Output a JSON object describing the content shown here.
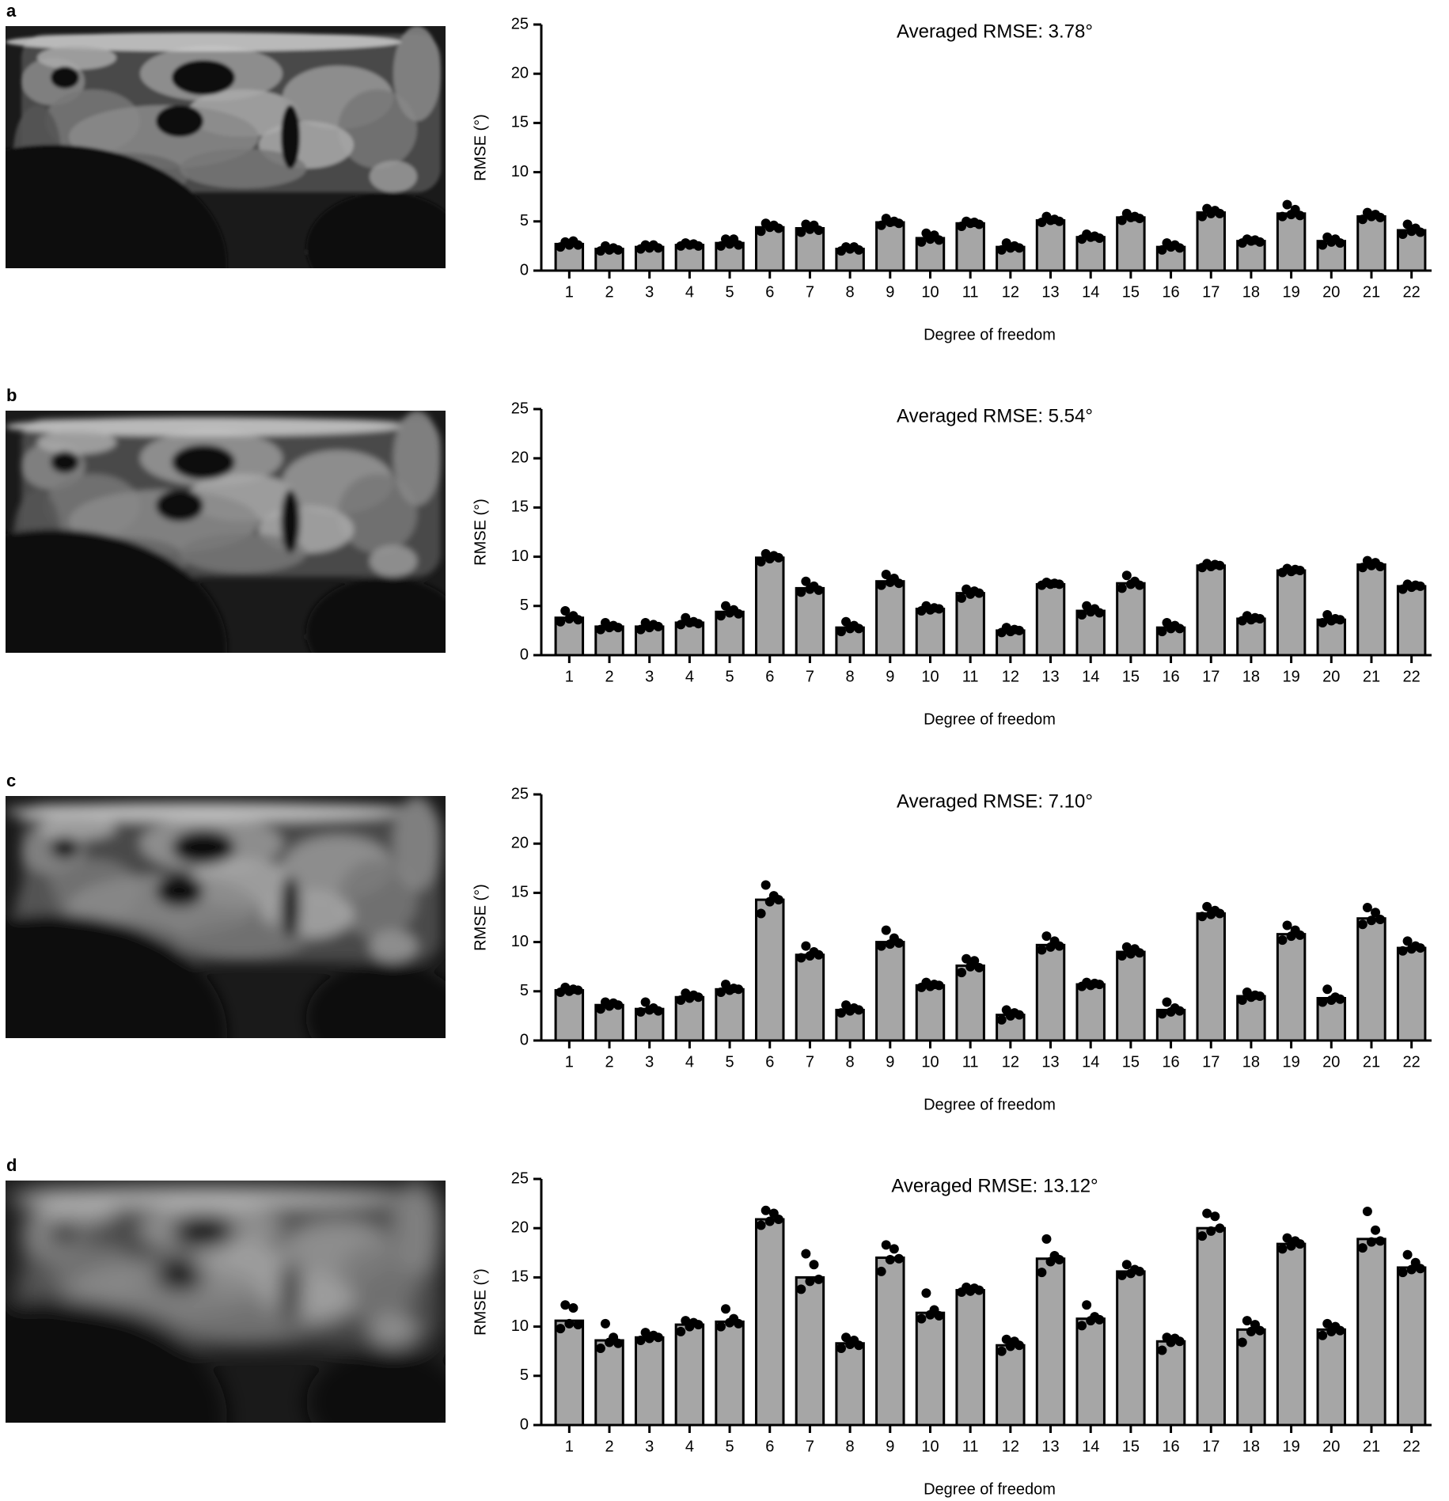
{
  "chart_data": [
    {
      "type": "bar",
      "panel": "a",
      "title": "Averaged RMSE: 3.78°",
      "xlabel": "Degree of freedom",
      "ylabel": "RMSE (°)",
      "categories": [
        "1",
        "2",
        "3",
        "4",
        "5",
        "6",
        "7",
        "8",
        "9",
        "10",
        "11",
        "12",
        "13",
        "14",
        "15",
        "16",
        "17",
        "18",
        "19",
        "20",
        "21",
        "22"
      ],
      "values": [
        2.7,
        2.2,
        2.4,
        2.6,
        2.8,
        4.4,
        4.3,
        2.2,
        4.9,
        3.3,
        4.8,
        2.4,
        5.1,
        3.4,
        5.4,
        2.4,
        5.9,
        3.0,
        5.8,
        3.0,
        5.5,
        4.1
      ],
      "points": [
        [
          2.4,
          2.9,
          2.6,
          3.0,
          2.6
        ],
        [
          2.0,
          2.5,
          2.1,
          2.3,
          2.1
        ],
        [
          2.2,
          2.6,
          2.3,
          2.6,
          2.3
        ],
        [
          2.5,
          2.8,
          2.6,
          2.7,
          2.5
        ],
        [
          2.5,
          3.2,
          2.7,
          3.2,
          2.6
        ],
        [
          4.0,
          4.8,
          4.4,
          4.6,
          4.3
        ],
        [
          3.9,
          4.7,
          4.2,
          4.6,
          4.1
        ],
        [
          2.0,
          2.4,
          2.2,
          2.4,
          2.1
        ],
        [
          4.6,
          5.3,
          4.9,
          5.0,
          4.8
        ],
        [
          2.9,
          3.8,
          3.2,
          3.6,
          3.1
        ],
        [
          4.5,
          5.0,
          4.8,
          4.9,
          4.7
        ],
        [
          2.1,
          2.8,
          2.3,
          2.5,
          2.3
        ],
        [
          4.9,
          5.5,
          5.1,
          5.2,
          5.0
        ],
        [
          3.2,
          3.7,
          3.4,
          3.5,
          3.3
        ],
        [
          5.1,
          5.8,
          5.4,
          5.5,
          5.3
        ],
        [
          2.1,
          2.8,
          2.4,
          2.6,
          2.3
        ],
        [
          5.5,
          6.3,
          5.8,
          6.1,
          5.8
        ],
        [
          2.8,
          3.2,
          3.0,
          3.1,
          2.9
        ],
        [
          5.5,
          6.7,
          5.7,
          6.2,
          5.6
        ],
        [
          2.6,
          3.4,
          2.9,
          3.2,
          2.8
        ],
        [
          5.2,
          5.9,
          5.5,
          5.7,
          5.4
        ],
        [
          3.7,
          4.7,
          4.0,
          4.3,
          3.9
        ]
      ],
      "ylim": [
        0,
        25
      ],
      "yticks": [
        0,
        5,
        10,
        15,
        20,
        25
      ],
      "color": "#a6a6a6",
      "point_color": "#000000"
    },
    {
      "type": "bar",
      "panel": "b",
      "title": "Averaged RMSE: 5.54°",
      "xlabel": "Degree of freedom",
      "ylabel": "RMSE (°)",
      "categories": [
        "1",
        "2",
        "3",
        "4",
        "5",
        "6",
        "7",
        "8",
        "9",
        "10",
        "11",
        "12",
        "13",
        "14",
        "15",
        "16",
        "17",
        "18",
        "19",
        "20",
        "21",
        "22"
      ],
      "values": [
        3.8,
        2.9,
        2.9,
        3.3,
        4.4,
        9.9,
        6.8,
        2.8,
        7.5,
        4.7,
        6.3,
        2.5,
        7.2,
        4.5,
        7.3,
        2.8,
        9.1,
        3.7,
        8.6,
        3.6,
        9.2,
        7.0
      ],
      "points": [
        [
          3.4,
          4.5,
          3.7,
          4.0,
          3.6
        ],
        [
          2.6,
          3.3,
          2.8,
          3.0,
          2.8
        ],
        [
          2.6,
          3.3,
          2.8,
          3.1,
          2.9
        ],
        [
          3.1,
          3.8,
          3.3,
          3.4,
          3.2
        ],
        [
          4.0,
          5.0,
          4.3,
          4.6,
          4.2
        ],
        [
          9.5,
          10.3,
          9.8,
          10.1,
          9.9
        ],
        [
          6.4,
          7.5,
          6.7,
          7.0,
          6.6
        ],
        [
          2.4,
          3.4,
          2.7,
          3.0,
          2.7
        ],
        [
          7.1,
          8.2,
          7.4,
          7.8,
          7.3
        ],
        [
          4.5,
          5.0,
          4.6,
          4.8,
          4.7
        ],
        [
          5.8,
          6.7,
          6.2,
          6.5,
          6.3
        ],
        [
          2.3,
          2.8,
          2.4,
          2.6,
          2.5
        ],
        [
          7.1,
          7.4,
          7.2,
          7.3,
          7.2
        ],
        [
          4.1,
          5.0,
          4.4,
          4.7,
          4.3
        ],
        [
          6.8,
          8.1,
          7.2,
          7.5,
          7.1
        ],
        [
          2.4,
          3.3,
          2.7,
          3.0,
          2.7
        ],
        [
          8.9,
          9.3,
          9.0,
          9.2,
          9.1
        ],
        [
          3.5,
          4.0,
          3.6,
          3.8,
          3.7
        ],
        [
          8.4,
          8.8,
          8.5,
          8.7,
          8.6
        ],
        [
          3.3,
          4.1,
          3.5,
          3.7,
          3.6
        ],
        [
          8.9,
          9.6,
          9.1,
          9.4,
          9.0
        ],
        [
          6.7,
          7.2,
          6.9,
          7.1,
          7.0
        ]
      ],
      "ylim": [
        0,
        25
      ],
      "yticks": [
        0,
        5,
        10,
        15,
        20,
        25
      ],
      "color": "#a6a6a6",
      "point_color": "#000000"
    },
    {
      "type": "bar",
      "panel": "c",
      "title": "Averaged RMSE: 7.10°",
      "xlabel": "Degree of freedom",
      "ylabel": "RMSE (°)",
      "categories": [
        "1",
        "2",
        "3",
        "4",
        "5",
        "6",
        "7",
        "8",
        "9",
        "10",
        "11",
        "12",
        "13",
        "14",
        "15",
        "16",
        "17",
        "18",
        "19",
        "20",
        "21",
        "22"
      ],
      "values": [
        5.1,
        3.6,
        3.2,
        4.4,
        5.2,
        14.3,
        8.7,
        3.1,
        10.0,
        5.6,
        7.6,
        2.6,
        9.7,
        5.7,
        9.0,
        3.1,
        12.9,
        4.5,
        10.8,
        4.3,
        12.4,
        9.4
      ],
      "points": [
        [
          4.9,
          5.4,
          5.0,
          5.2,
          5.1
        ],
        [
          3.2,
          3.9,
          3.5,
          3.8,
          3.6
        ],
        [
          2.9,
          3.9,
          3.1,
          3.3,
          3.0
        ],
        [
          4.1,
          4.8,
          4.3,
          4.6,
          4.4
        ],
        [
          4.9,
          5.7,
          5.1,
          5.3,
          5.2
        ],
        [
          12.9,
          15.8,
          14.1,
          14.7,
          14.3
        ],
        [
          8.4,
          9.6,
          8.6,
          9.0,
          8.7
        ],
        [
          2.8,
          3.6,
          3.0,
          3.3,
          3.1
        ],
        [
          9.6,
          11.2,
          9.8,
          10.4,
          9.9
        ],
        [
          5.4,
          5.9,
          5.5,
          5.7,
          5.6
        ],
        [
          6.9,
          8.3,
          7.5,
          8.1,
          7.4
        ],
        [
          2.1,
          3.1,
          2.5,
          2.8,
          2.6
        ],
        [
          9.2,
          10.6,
          9.5,
          10.1,
          9.6
        ],
        [
          5.5,
          5.9,
          5.6,
          5.8,
          5.7
        ],
        [
          8.6,
          9.5,
          8.8,
          9.3,
          8.9
        ],
        [
          2.7,
          3.9,
          2.9,
          3.3,
          3.0
        ],
        [
          12.6,
          13.6,
          12.8,
          13.2,
          12.9
        ],
        [
          4.1,
          4.9,
          4.4,
          4.6,
          4.5
        ],
        [
          10.2,
          11.7,
          10.6,
          11.2,
          10.7
        ],
        [
          3.9,
          5.2,
          4.1,
          4.4,
          4.2
        ],
        [
          11.8,
          13.5,
          12.2,
          13.0,
          12.3
        ],
        [
          9.1,
          10.1,
          9.3,
          9.6,
          9.4
        ]
      ],
      "ylim": [
        0,
        25
      ],
      "yticks": [
        0,
        5,
        10,
        15,
        20,
        25
      ],
      "color": "#a6a6a6",
      "point_color": "#000000"
    },
    {
      "type": "bar",
      "panel": "d",
      "title": "Averaged RMSE: 13.12°",
      "xlabel": "Degree of freedom",
      "ylabel": "RMSE (°)",
      "categories": [
        "1",
        "2",
        "3",
        "4",
        "5",
        "6",
        "7",
        "8",
        "9",
        "10",
        "11",
        "12",
        "13",
        "14",
        "15",
        "16",
        "17",
        "18",
        "19",
        "20",
        "21",
        "22"
      ],
      "values": [
        10.6,
        8.6,
        8.9,
        10.2,
        10.5,
        20.9,
        15.0,
        8.3,
        17.0,
        11.4,
        13.7,
        8.1,
        16.9,
        10.8,
        15.6,
        8.5,
        20.0,
        9.7,
        18.4,
        9.7,
        18.9,
        16.0
      ],
      "points": [
        [
          9.8,
          12.2,
          10.3,
          11.9,
          10.2
        ],
        [
          7.8,
          10.3,
          8.4,
          8.9,
          8.3
        ],
        [
          8.6,
          9.4,
          8.8,
          9.1,
          8.9
        ],
        [
          9.5,
          10.6,
          10.0,
          10.4,
          10.2
        ],
        [
          10.0,
          11.8,
          10.4,
          10.8,
          10.3
        ],
        [
          20.3,
          21.8,
          20.7,
          21.5,
          20.9
        ],
        [
          13.8,
          17.4,
          14.6,
          16.3,
          14.8
        ],
        [
          7.8,
          8.9,
          8.2,
          8.6,
          8.1
        ],
        [
          15.6,
          18.3,
          16.8,
          17.9,
          16.9
        ],
        [
          10.8,
          13.4,
          11.2,
          11.7,
          11.1
        ],
        [
          13.5,
          14.0,
          13.6,
          13.9,
          13.7
        ],
        [
          7.5,
          8.7,
          8.0,
          8.5,
          8.1
        ],
        [
          15.5,
          18.9,
          16.6,
          17.2,
          16.8
        ],
        [
          10.1,
          12.2,
          10.6,
          11.0,
          10.7
        ],
        [
          15.2,
          16.3,
          15.4,
          15.8,
          15.6
        ],
        [
          7.6,
          8.9,
          8.4,
          8.8,
          8.5
        ],
        [
          19.2,
          21.5,
          19.7,
          21.2,
          20.0
        ],
        [
          8.4,
          10.6,
          9.5,
          10.2,
          9.6
        ],
        [
          17.9,
          19.0,
          18.2,
          18.7,
          18.4
        ],
        [
          9.1,
          10.3,
          9.5,
          10.0,
          9.6
        ],
        [
          18.0,
          21.7,
          18.6,
          19.8,
          18.7
        ],
        [
          15.5,
          17.3,
          15.8,
          16.5,
          15.9
        ]
      ],
      "ylim": [
        0,
        25
      ],
      "yticks": [
        0,
        5,
        10,
        15,
        20,
        25
      ],
      "color": "#a6a6a6",
      "point_color": "#000000"
    }
  ]
}
